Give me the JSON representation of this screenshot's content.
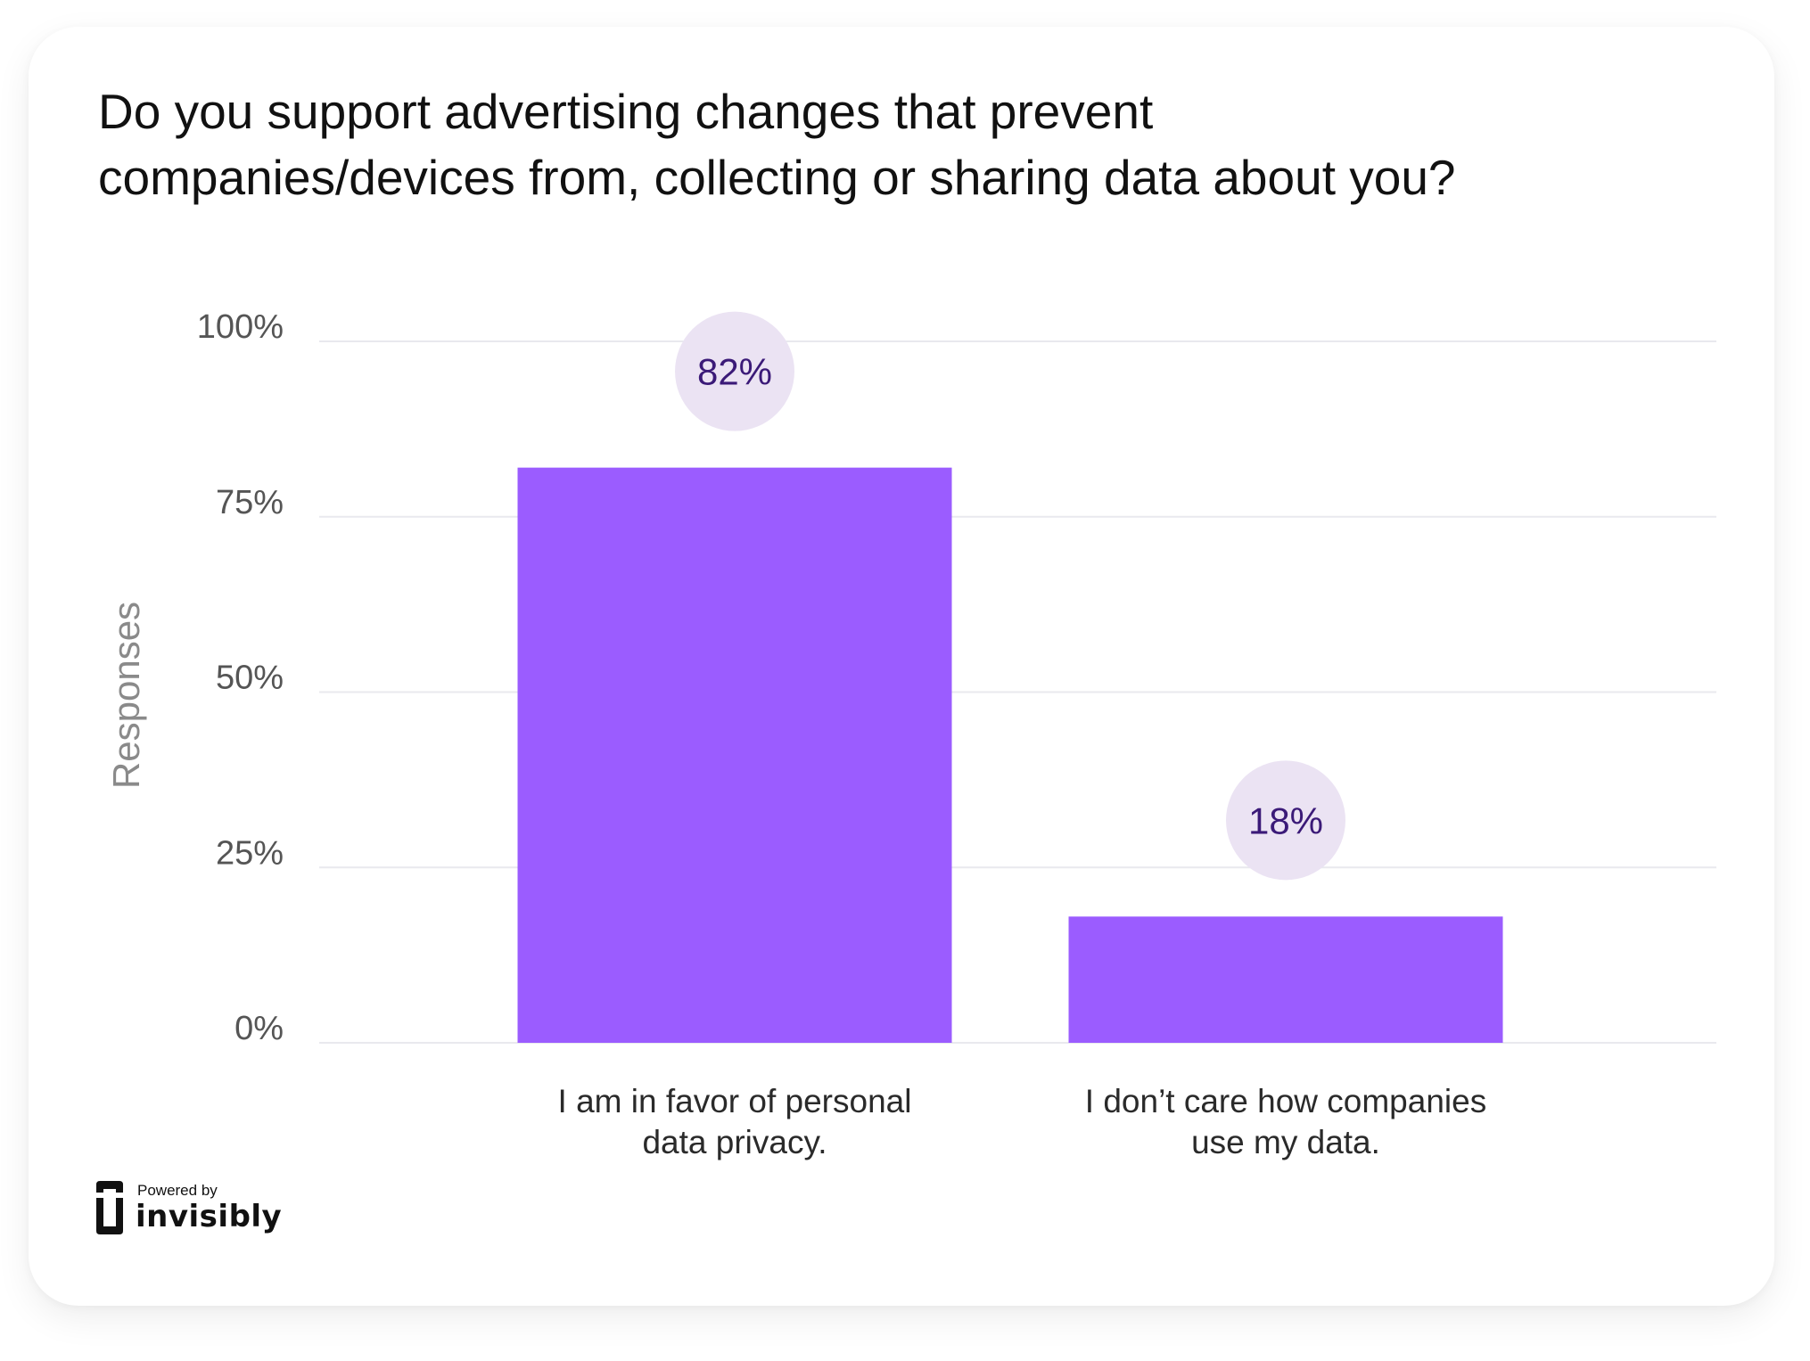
{
  "title": "Do you support advertising changes that prevent companies/devices from, collecting or sharing data about you?",
  "title_lines": [
    "Do you support advertising changes that prevent",
    "companies/devices from, collecting or sharing data about you?"
  ],
  "colors": {
    "bar": "#9b5cff",
    "badge_bg": "#ebe3f3",
    "badge_text": "#3b1a78",
    "grid": "#e9e9ee",
    "tick_text": "#555555",
    "axis_title": "#8a8a8a"
  },
  "chart_data": {
    "type": "bar",
    "categories": [
      [
        "I am in favor of personal",
        "data privacy."
      ],
      [
        "I don’t care how companies",
        "use my data."
      ]
    ],
    "values": [
      82,
      18
    ],
    "data_labels": [
      "82%",
      "18%"
    ],
    "xlabel": "",
    "ylabel": "Responses",
    "ylim": [
      0,
      100
    ],
    "yticks": [
      {
        "value": 0,
        "label": "0%"
      },
      {
        "value": 25,
        "label": "25%"
      },
      {
        "value": 50,
        "label": "50%"
      },
      {
        "value": 75,
        "label": "75%"
      },
      {
        "value": 100,
        "label": "100%"
      }
    ],
    "grid": true,
    "legend": "none"
  },
  "brand": {
    "powered_by": "Powered by",
    "name": "invisibly",
    "icon": "invisibly-logo-icon"
  }
}
